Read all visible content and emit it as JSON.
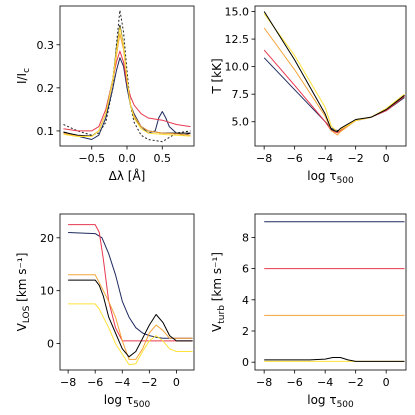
{
  "chart_data": [
    {
      "type": "line",
      "xlabel": "Δλ [Å]",
      "ylabel": "I/I",
      "ylabel_sub": "c",
      "xlim": [
        -0.95,
        0.95
      ],
      "ylim": [
        0.065,
        0.39
      ],
      "xticks": [
        -0.5,
        0.0,
        0.5
      ],
      "xtick_labels": [
        "−0.5",
        "0.0",
        "0.5"
      ],
      "yticks": [
        0.1,
        0.2,
        0.3
      ],
      "ytick_labels": [
        "0.1",
        "0.2",
        "0.3"
      ],
      "series": [
        {
          "color": "#222222",
          "dash": "2,2",
          "x": [
            -0.9,
            -0.7,
            -0.5,
            -0.4,
            -0.3,
            -0.2,
            -0.15,
            -0.1,
            -0.05,
            0.0,
            0.05,
            0.1,
            0.2,
            0.3,
            0.5,
            0.7,
            0.9
          ],
          "y": [
            0.115,
            0.1,
            0.09,
            0.095,
            0.12,
            0.2,
            0.3,
            0.38,
            0.33,
            0.24,
            0.16,
            0.12,
            0.09,
            0.08,
            0.075,
            0.095,
            0.1
          ]
        },
        {
          "color": "#1e2a5e",
          "x": [
            -0.9,
            -0.7,
            -0.5,
            -0.4,
            -0.3,
            -0.2,
            -0.15,
            -0.1,
            -0.05,
            0.0,
            0.05,
            0.1,
            0.2,
            0.3,
            0.4,
            0.45,
            0.5,
            0.55,
            0.6,
            0.7,
            0.8,
            0.9
          ],
          "y": [
            0.098,
            0.088,
            0.08,
            0.09,
            0.13,
            0.2,
            0.24,
            0.27,
            0.25,
            0.2,
            0.16,
            0.14,
            0.11,
            0.095,
            0.1,
            0.13,
            0.145,
            0.13,
            0.11,
            0.095,
            0.09,
            0.095
          ]
        },
        {
          "color": "#e8384f",
          "x": [
            -0.9,
            -0.7,
            -0.5,
            -0.4,
            -0.3,
            -0.2,
            -0.15,
            -0.1,
            -0.05,
            0.0,
            0.05,
            0.1,
            0.2,
            0.3,
            0.5,
            0.7,
            0.9
          ],
          "y": [
            0.105,
            0.1,
            0.1,
            0.11,
            0.15,
            0.22,
            0.26,
            0.285,
            0.26,
            0.21,
            0.18,
            0.16,
            0.14,
            0.13,
            0.125,
            0.115,
            0.11
          ]
        },
        {
          "color": "#000000",
          "x": [
            -0.9,
            -0.7,
            -0.5,
            -0.4,
            -0.3,
            -0.2,
            -0.15,
            -0.1,
            -0.05,
            0.0,
            0.05,
            0.1,
            0.2,
            0.3,
            0.5,
            0.7,
            0.9
          ],
          "y": [
            0.097,
            0.09,
            0.088,
            0.1,
            0.14,
            0.22,
            0.29,
            0.345,
            0.3,
            0.22,
            0.16,
            0.13,
            0.11,
            0.1,
            0.095,
            0.095,
            0.095
          ]
        },
        {
          "color": "#f5a53a",
          "x": [
            -0.9,
            -0.7,
            -0.5,
            -0.4,
            -0.3,
            -0.2,
            -0.15,
            -0.1,
            -0.05,
            0.0,
            0.05,
            0.1,
            0.2,
            0.3,
            0.5,
            0.7,
            0.9
          ],
          "y": [
            0.094,
            0.088,
            0.087,
            0.1,
            0.14,
            0.215,
            0.275,
            0.325,
            0.29,
            0.22,
            0.16,
            0.135,
            0.11,
            0.1,
            0.095,
            0.093,
            0.09
          ]
        },
        {
          "color": "#ffe23a",
          "x": [
            -0.9,
            -0.7,
            -0.5,
            -0.4,
            -0.3,
            -0.2,
            -0.15,
            -0.1,
            -0.05,
            0.0,
            0.05,
            0.1,
            0.2,
            0.3,
            0.5,
            0.7,
            0.9
          ],
          "y": [
            0.092,
            0.087,
            0.087,
            0.1,
            0.14,
            0.22,
            0.285,
            0.34,
            0.3,
            0.22,
            0.16,
            0.13,
            0.105,
            0.095,
            0.092,
            0.09,
            0.088
          ]
        }
      ]
    },
    {
      "type": "line",
      "xlabel": "log τ",
      "xlabel_sub": "500",
      "ylabel": "T [kK]",
      "xlim": [
        -8.6,
        1.3
      ],
      "ylim": [
        2.8,
        15.5
      ],
      "xticks": [
        -8,
        -6,
        -4,
        -2,
        0
      ],
      "xtick_labels": [
        "−8",
        "−6",
        "−4",
        "−2",
        "0"
      ],
      "yticks": [
        5.0,
        7.5,
        10.0,
        12.5,
        15.0
      ],
      "ytick_labels": [
        "5.0",
        "7.5",
        "10.0",
        "12.5",
        "15.0"
      ],
      "series": [
        {
          "color": "#1e2a5e",
          "x": [
            -8,
            -6,
            -4,
            -3.6,
            -3.2,
            -3,
            -2,
            -1,
            0,
            1.2
          ],
          "y": [
            10.8,
            7.9,
            5.0,
            4.4,
            4.2,
            4.3,
            5.1,
            5.4,
            6.0,
            7.2
          ]
        },
        {
          "color": "#e8384f",
          "x": [
            -8,
            -6,
            -4,
            -3.6,
            -3.2,
            -3,
            -2,
            -1,
            0,
            1.2
          ],
          "y": [
            11.5,
            8.3,
            5.0,
            4.2,
            4.0,
            4.2,
            5.1,
            5.4,
            6.0,
            7.3
          ]
        },
        {
          "color": "#f5a53a",
          "x": [
            -8,
            -6,
            -4,
            -3.6,
            -3.2,
            -3,
            -2,
            -1,
            0,
            1.2
          ],
          "y": [
            13.5,
            9.7,
            5.5,
            4.2,
            3.8,
            4.1,
            5.1,
            5.4,
            6.1,
            7.4
          ]
        },
        {
          "color": "#ffe23a",
          "x": [
            -8,
            -6,
            -4,
            -3.6,
            -3.2,
            -3,
            -2,
            -1,
            0,
            1.2
          ],
          "y": [
            14.8,
            11.0,
            6.3,
            4.6,
            4.1,
            4.3,
            5.1,
            5.4,
            6.2,
            7.5
          ]
        },
        {
          "color": "#000000",
          "x": [
            -8,
            -6,
            -4,
            -3.6,
            -3.2,
            -3,
            -2,
            -1,
            0,
            1.2
          ],
          "y": [
            15.0,
            10.6,
            5.7,
            4.3,
            4.1,
            4.4,
            5.2,
            5.4,
            6.1,
            7.4
          ]
        }
      ]
    },
    {
      "type": "line",
      "xlabel": "log τ",
      "xlabel_sub": "500",
      "ylabel": "V",
      "ylabel_sub": "LOS",
      "ylabel_unit": "[km s⁻¹]",
      "xlim": [
        -8.6,
        1.3
      ],
      "ylim": [
        -5,
        24.5
      ],
      "xticks": [
        -8,
        -6,
        -4,
        -2,
        0
      ],
      "xtick_labels": [
        "−8",
        "−6",
        "−4",
        "−2",
        "0"
      ],
      "yticks": [
        0,
        10,
        20
      ],
      "ytick_labels": [
        "0",
        "10",
        "20"
      ],
      "series": [
        {
          "color": "#1e2a5e",
          "x": [
            -8,
            -6,
            -5.5,
            -5,
            -4.5,
            -4,
            -3.5,
            -3,
            -2.5,
            -2,
            -1.5,
            -1,
            -0.5,
            0,
            1.2
          ],
          "y": [
            21,
            20.8,
            20,
            17,
            13,
            8,
            5,
            3,
            2,
            1.5,
            1.2,
            1,
            1,
            1,
            1
          ]
        },
        {
          "color": "#e8384f",
          "x": [
            -8,
            -6,
            -5.7,
            -5.4,
            -5,
            -4.5,
            -4,
            -3.5,
            -3,
            -2,
            0,
            1.2
          ],
          "y": [
            22.5,
            22.5,
            21,
            16,
            8,
            3,
            0.5,
            0.5,
            0.5,
            0.5,
            0.5,
            0.5
          ]
        },
        {
          "color": "#f5a53a",
          "x": [
            -8,
            -6,
            -5.7,
            -5.4,
            -5,
            -4.5,
            -4,
            -3.5,
            -3,
            -2.5,
            -2,
            -1.5,
            -1,
            -0.5,
            0,
            1.2
          ],
          "y": [
            13,
            13,
            11.5,
            10,
            8,
            5,
            0.5,
            -3,
            -3,
            -1,
            2,
            3.5,
            2.5,
            1,
            1,
            1
          ]
        },
        {
          "color": "#ffe23a",
          "x": [
            -8,
            -6,
            -5.7,
            -5.4,
            -5,
            -4.5,
            -4,
            -3.5,
            -3,
            -2.5,
            -2,
            -1.5,
            -1,
            -0.5,
            0,
            1.2
          ],
          "y": [
            7.5,
            7.5,
            6.5,
            5,
            3,
            0,
            -2,
            -4,
            -3.8,
            -1.5,
            0.5,
            1.5,
            0.5,
            -1,
            -1.5,
            -1.5
          ]
        },
        {
          "color": "#000000",
          "x": [
            -8,
            -6,
            -5.7,
            -5.4,
            -5,
            -4.5,
            -4,
            -3.5,
            -3,
            -2.5,
            -2,
            -1.5,
            -1,
            -0.5,
            0,
            1.2
          ],
          "y": [
            12,
            12,
            11,
            9,
            5,
            2,
            -1,
            -2.5,
            -1.5,
            1,
            3.5,
            5.5,
            4,
            1.5,
            0.5,
            0.5
          ]
        }
      ]
    },
    {
      "type": "line",
      "xlabel": "log τ",
      "xlabel_sub": "500",
      "ylabel": "V",
      "ylabel_sub": "turb",
      "ylabel_unit": "[km s⁻¹]",
      "xlim": [
        -8.6,
        1.3
      ],
      "ylim": [
        -0.5,
        9.5
      ],
      "xticks": [
        -8,
        -6,
        -4,
        -2,
        0
      ],
      "xtick_labels": [
        "−8",
        "−6",
        "−4",
        "−2",
        "0"
      ],
      "yticks": [
        0,
        2,
        4,
        6,
        8
      ],
      "ytick_labels": [
        "0",
        "2",
        "4",
        "6",
        "8"
      ],
      "series": [
        {
          "color": "#1e2a5e",
          "x": [
            -8,
            1.2
          ],
          "y": [
            9,
            9
          ]
        },
        {
          "color": "#e8384f",
          "x": [
            -8,
            1.2
          ],
          "y": [
            6,
            6
          ]
        },
        {
          "color": "#f5a53a",
          "x": [
            -8,
            1.2
          ],
          "y": [
            3,
            3
          ]
        },
        {
          "color": "#ffe23a",
          "x": [
            -8,
            1.2
          ],
          "y": [
            0.05,
            0.05
          ]
        },
        {
          "color": "#000000",
          "x": [
            -8,
            -5,
            -4,
            -3.5,
            -3,
            -2.5,
            -2,
            -1,
            0,
            1.2
          ],
          "y": [
            0.15,
            0.15,
            0.2,
            0.3,
            0.3,
            0.15,
            0.05,
            0.05,
            0.05,
            0.05
          ]
        }
      ]
    }
  ]
}
